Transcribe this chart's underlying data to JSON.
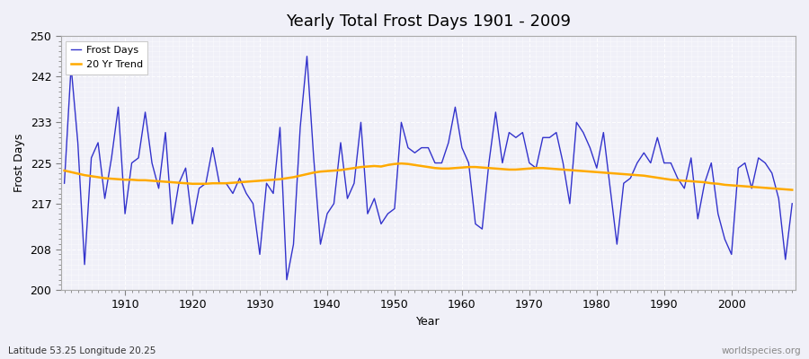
{
  "title": "Yearly Total Frost Days 1901 - 2009",
  "xlabel": "Year",
  "ylabel": "Frost Days",
  "subtitle": "Latitude 53.25 Longitude 20.25",
  "watermark": "worldspecies.org",
  "ylim": [
    200,
    250
  ],
  "yticks": [
    200,
    208,
    217,
    225,
    233,
    242,
    250
  ],
  "frost_days": [
    221,
    244,
    229,
    205,
    226,
    229,
    218,
    226,
    236,
    215,
    225,
    226,
    235,
    225,
    220,
    231,
    213,
    221,
    224,
    213,
    220,
    221,
    228,
    221,
    221,
    219,
    222,
    219,
    217,
    207,
    221,
    219,
    232,
    202,
    209,
    232,
    246,
    226,
    209,
    215,
    217,
    229,
    218,
    221,
    233,
    215,
    218,
    213,
    215,
    216,
    233,
    228,
    227,
    228,
    228,
    225,
    225,
    229,
    236,
    228,
    225,
    213,
    212,
    225,
    235,
    225,
    231,
    230,
    231,
    225,
    224,
    230,
    230,
    231,
    225,
    217,
    233,
    231,
    228,
    224,
    231,
    220,
    209,
    221,
    222,
    225,
    227,
    225,
    230,
    225,
    225,
    222,
    220,
    226,
    214,
    221,
    225,
    215,
    210,
    207,
    224,
    225,
    220,
    226,
    225,
    223,
    218,
    206,
    217
  ],
  "trend_days": [
    223.5,
    223.2,
    222.9,
    222.6,
    222.4,
    222.2,
    222.0,
    221.9,
    221.8,
    221.7,
    221.7,
    221.6,
    221.6,
    221.5,
    221.4,
    221.3,
    221.2,
    221.1,
    221.0,
    220.9,
    220.9,
    220.9,
    221.0,
    221.0,
    221.0,
    221.1,
    221.2,
    221.3,
    221.4,
    221.5,
    221.6,
    221.7,
    221.8,
    222.0,
    222.2,
    222.5,
    222.8,
    223.1,
    223.3,
    223.4,
    223.5,
    223.6,
    223.8,
    224.0,
    224.2,
    224.3,
    224.4,
    224.3,
    224.6,
    224.8,
    224.9,
    224.8,
    224.6,
    224.4,
    224.2,
    224.0,
    223.9,
    223.9,
    224.0,
    224.1,
    224.2,
    224.2,
    224.1,
    224.0,
    223.9,
    223.8,
    223.7,
    223.7,
    223.8,
    223.9,
    224.0,
    224.0,
    223.9,
    223.8,
    223.7,
    223.6,
    223.5,
    223.4,
    223.3,
    223.2,
    223.1,
    223.0,
    222.9,
    222.8,
    222.7,
    222.6,
    222.5,
    222.3,
    222.1,
    221.9,
    221.7,
    221.6,
    221.5,
    221.4,
    221.3,
    221.2,
    221.0,
    220.9,
    220.7,
    220.6,
    220.5,
    220.4,
    220.3,
    220.2,
    220.1,
    220.0,
    219.9,
    219.8,
    219.7
  ],
  "frost_color": "#3333cc",
  "trend_color": "#ffaa00",
  "plot_bg_color": "#f0f0f8",
  "fig_bg_color": "#f0f0f8",
  "grid_color": "#ffffff",
  "start_year": 1901
}
